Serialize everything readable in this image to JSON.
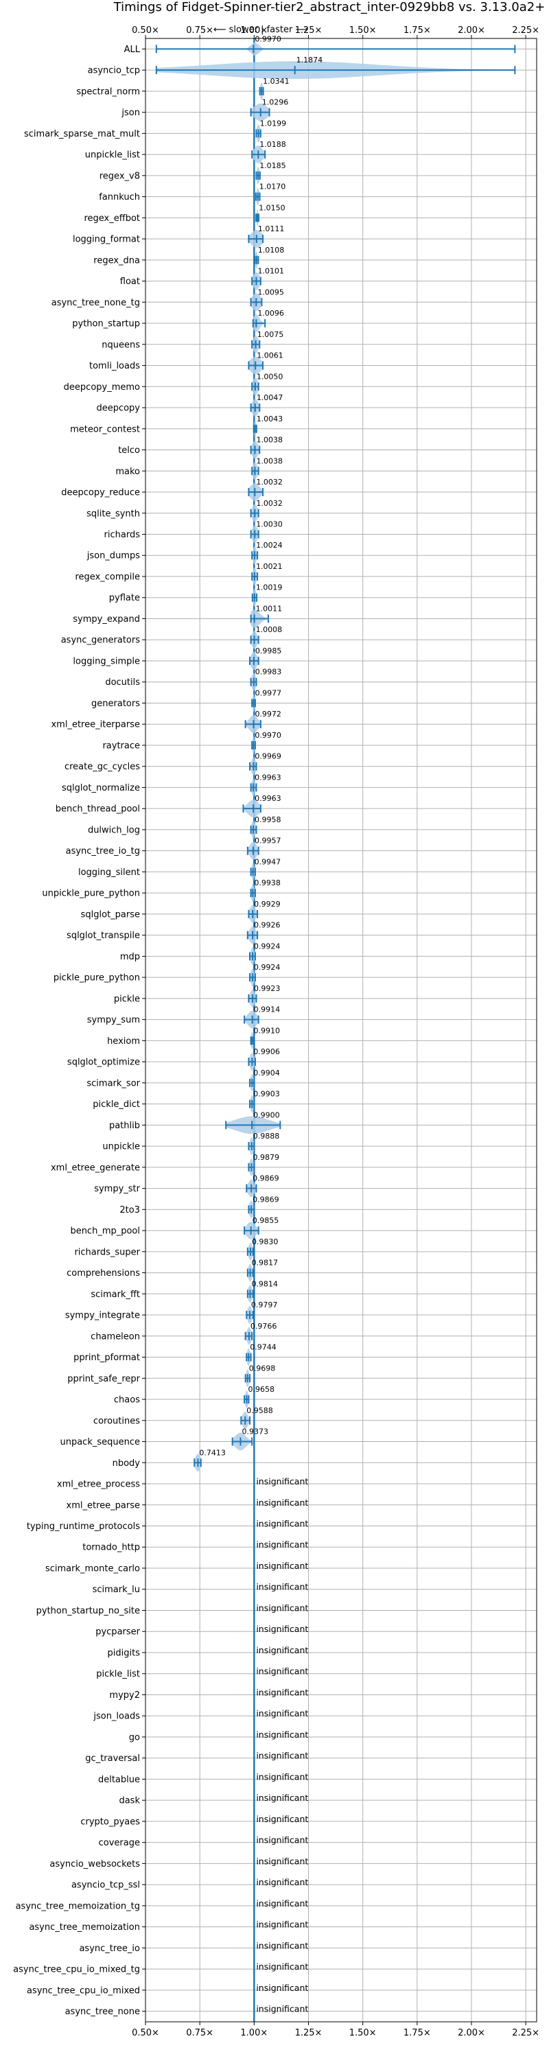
{
  "chart_data": {
    "type": "violin",
    "title": "Timings of Fidget-Spinner-tier2_abstract_inter-0929bb8 vs. 3.13.0a2+",
    "direction_label": "⟵ slower | faster ⟶",
    "xlim": [
      0.5,
      2.3
    ],
    "xticks": [
      0.5,
      0.75,
      1.0,
      1.25,
      1.5,
      1.75,
      2.0,
      2.25
    ],
    "xtick_labels": [
      "0.50×",
      "0.75×",
      "1.00×",
      "1.25×",
      "1.50×",
      "1.75×",
      "2.00×",
      "2.25×"
    ],
    "reference_line": 1.0,
    "grid": true,
    "colors": {
      "violin": "#1f77b4",
      "violin_fill": "#aecde8",
      "reference": "#1f77b4",
      "grid": "#b0b0b0"
    },
    "insignificant_label": "insignificant",
    "benchmarks": [
      {
        "name": "ALL",
        "value": 0.997,
        "label": "0.9970",
        "min": 0.55,
        "max": 2.2,
        "spread": 0.01
      },
      {
        "name": "asyncio_tcp",
        "value": 1.1874,
        "label": "1.1874",
        "min": 0.55,
        "max": 2.2,
        "spread": 0.38
      },
      {
        "name": "spectral_norm",
        "value": 1.0341,
        "label": "1.0341",
        "min": 1.026,
        "max": 1.042,
        "spread": 0.006
      },
      {
        "name": "json",
        "value": 1.0296,
        "label": "1.0296",
        "min": 0.985,
        "max": 1.07,
        "spread": 0.03
      },
      {
        "name": "scimark_sparse_mat_mult",
        "value": 1.0199,
        "label": "1.0199",
        "min": 1.01,
        "max": 1.03,
        "spread": 0.008
      },
      {
        "name": "unpickle_list",
        "value": 1.0188,
        "label": "1.0188",
        "min": 0.99,
        "max": 1.05,
        "spread": 0.02
      },
      {
        "name": "regex_v8",
        "value": 1.0185,
        "label": "1.0185",
        "min": 1.01,
        "max": 1.027,
        "spread": 0.006
      },
      {
        "name": "fannkuch",
        "value": 1.017,
        "label": "1.0170",
        "min": 1.008,
        "max": 1.026,
        "spread": 0.006
      },
      {
        "name": "regex_effbot",
        "value": 1.015,
        "label": "1.0150",
        "min": 1.009,
        "max": 1.021,
        "spread": 0.004
      },
      {
        "name": "logging_format",
        "value": 1.0111,
        "label": "1.0111",
        "min": 0.975,
        "max": 1.04,
        "spread": 0.025
      },
      {
        "name": "regex_dna",
        "value": 1.0108,
        "label": "1.0108",
        "min": 1.003,
        "max": 1.019,
        "spread": 0.005
      },
      {
        "name": "float",
        "value": 1.0101,
        "label": "1.0101",
        "min": 0.99,
        "max": 1.03,
        "spread": 0.015
      },
      {
        "name": "async_tree_none_tg",
        "value": 1.0095,
        "label": "1.0095",
        "min": 0.985,
        "max": 1.035,
        "spread": 0.02
      },
      {
        "name": "python_startup",
        "value": 1.0096,
        "label": "1.0096",
        "min": 0.995,
        "max": 1.05,
        "spread": 0.015
      },
      {
        "name": "nqueens",
        "value": 1.0075,
        "label": "1.0075",
        "min": 0.99,
        "max": 1.025,
        "spread": 0.012
      },
      {
        "name": "tomli_loads",
        "value": 1.0061,
        "label": "1.0061",
        "min": 0.975,
        "max": 1.04,
        "spread": 0.025
      },
      {
        "name": "deepcopy_memo",
        "value": 1.005,
        "label": "1.0050",
        "min": 0.99,
        "max": 1.02,
        "spread": 0.012
      },
      {
        "name": "deepcopy",
        "value": 1.0047,
        "label": "1.0047",
        "min": 0.985,
        "max": 1.025,
        "spread": 0.014
      },
      {
        "name": "meteor_contest",
        "value": 1.0043,
        "label": "1.0043",
        "min": 0.998,
        "max": 1.011,
        "spread": 0.004
      },
      {
        "name": "telco",
        "value": 1.0038,
        "label": "1.0038",
        "min": 0.985,
        "max": 1.025,
        "spread": 0.014
      },
      {
        "name": "mako",
        "value": 1.0038,
        "label": "1.0038",
        "min": 0.99,
        "max": 1.02,
        "spread": 0.01
      },
      {
        "name": "deepcopy_reduce",
        "value": 1.0032,
        "label": "1.0032",
        "min": 0.975,
        "max": 1.04,
        "spread": 0.022
      },
      {
        "name": "sqlite_synth",
        "value": 1.0032,
        "label": "1.0032",
        "min": 0.985,
        "max": 1.02,
        "spread": 0.012
      },
      {
        "name": "richards",
        "value": 1.003,
        "label": "1.0030",
        "min": 0.985,
        "max": 1.02,
        "spread": 0.012
      },
      {
        "name": "json_dumps",
        "value": 1.0024,
        "label": "1.0024",
        "min": 0.99,
        "max": 1.015,
        "spread": 0.008
      },
      {
        "name": "regex_compile",
        "value": 1.0021,
        "label": "1.0021",
        "min": 0.99,
        "max": 1.015,
        "spread": 0.008
      },
      {
        "name": "pyflate",
        "value": 1.0019,
        "label": "1.0019",
        "min": 0.992,
        "max": 1.012,
        "spread": 0.007
      },
      {
        "name": "sympy_expand",
        "value": 1.0011,
        "label": "1.0011",
        "min": 0.985,
        "max": 1.065,
        "spread": 0.025
      },
      {
        "name": "async_generators",
        "value": 1.0008,
        "label": "1.0008",
        "min": 0.985,
        "max": 1.02,
        "spread": 0.012
      },
      {
        "name": "logging_simple",
        "value": 0.9985,
        "label": "0.9985",
        "min": 0.98,
        "max": 1.02,
        "spread": 0.014
      },
      {
        "name": "docutils",
        "value": 0.9983,
        "label": "0.9983",
        "min": 0.985,
        "max": 1.01,
        "spread": 0.009
      },
      {
        "name": "generators",
        "value": 0.9977,
        "label": "0.9977",
        "min": 0.99,
        "max": 1.005,
        "spread": 0.005
      },
      {
        "name": "xml_etree_iterparse",
        "value": 0.9972,
        "label": "0.9972",
        "min": 0.96,
        "max": 1.03,
        "spread": 0.02
      },
      {
        "name": "raytrace",
        "value": 0.997,
        "label": "0.9970",
        "min": 0.99,
        "max": 1.005,
        "spread": 0.005
      },
      {
        "name": "create_gc_cycles",
        "value": 0.9969,
        "label": "0.9969",
        "min": 0.98,
        "max": 1.01,
        "spread": 0.01
      },
      {
        "name": "sqlglot_normalize",
        "value": 0.9963,
        "label": "0.9963",
        "min": 0.985,
        "max": 1.01,
        "spread": 0.008
      },
      {
        "name": "bench_thread_pool",
        "value": 0.9963,
        "label": "0.9963",
        "min": 0.95,
        "max": 1.03,
        "spread": 0.025
      },
      {
        "name": "dulwich_log",
        "value": 0.9958,
        "label": "0.9958",
        "min": 0.985,
        "max": 1.01,
        "spread": 0.008
      },
      {
        "name": "async_tree_io_tg",
        "value": 0.9957,
        "label": "0.9957",
        "min": 0.97,
        "max": 1.02,
        "spread": 0.016
      },
      {
        "name": "logging_silent",
        "value": 0.9947,
        "label": "0.9947",
        "min": 0.985,
        "max": 1.005,
        "spread": 0.006
      },
      {
        "name": "unpickle_pure_python",
        "value": 0.9938,
        "label": "0.9938",
        "min": 0.985,
        "max": 1.005,
        "spread": 0.007
      },
      {
        "name": "sqlglot_parse",
        "value": 0.9929,
        "label": "0.9929",
        "min": 0.975,
        "max": 1.015,
        "spread": 0.013
      },
      {
        "name": "sqlglot_transpile",
        "value": 0.9926,
        "label": "0.9926",
        "min": 0.97,
        "max": 1.015,
        "spread": 0.014
      },
      {
        "name": "mdp",
        "value": 0.9924,
        "label": "0.9924",
        "min": 0.98,
        "max": 1.005,
        "spread": 0.008
      },
      {
        "name": "pickle_pure_python",
        "value": 0.9924,
        "label": "0.9924",
        "min": 0.98,
        "max": 1.005,
        "spread": 0.008
      },
      {
        "name": "pickle",
        "value": 0.9923,
        "label": "0.9923",
        "min": 0.975,
        "max": 1.01,
        "spread": 0.011
      },
      {
        "name": "sympy_sum",
        "value": 0.9914,
        "label": "0.9914",
        "min": 0.955,
        "max": 1.02,
        "spread": 0.02
      },
      {
        "name": "hexiom",
        "value": 0.991,
        "label": "0.9910",
        "min": 0.985,
        "max": 0.998,
        "spread": 0.005
      },
      {
        "name": "sqlglot_optimize",
        "value": 0.9906,
        "label": "0.9906",
        "min": 0.975,
        "max": 1.005,
        "spread": 0.01
      },
      {
        "name": "scimark_sor",
        "value": 0.9904,
        "label": "0.9904",
        "min": 0.98,
        "max": 1.0,
        "spread": 0.007
      },
      {
        "name": "pickle_dict",
        "value": 0.9903,
        "label": "0.9903",
        "min": 0.98,
        "max": 1.0,
        "spread": 0.007
      },
      {
        "name": "pathlib",
        "value": 0.99,
        "label": "0.9900",
        "min": 0.87,
        "max": 1.12,
        "spread": 0.075
      },
      {
        "name": "unpickle",
        "value": 0.9888,
        "label": "0.9888",
        "min": 0.975,
        "max": 1.0,
        "spread": 0.009
      },
      {
        "name": "xml_etree_generate",
        "value": 0.9879,
        "label": "0.9879",
        "min": 0.975,
        "max": 1.0,
        "spread": 0.009
      },
      {
        "name": "sympy_str",
        "value": 0.9869,
        "label": "0.9869",
        "min": 0.965,
        "max": 1.01,
        "spread": 0.014
      },
      {
        "name": "2to3",
        "value": 0.9869,
        "label": "0.9869",
        "min": 0.975,
        "max": 1.0,
        "spread": 0.009
      },
      {
        "name": "bench_mp_pool",
        "value": 0.9855,
        "label": "0.9855",
        "min": 0.955,
        "max": 1.02,
        "spread": 0.02
      },
      {
        "name": "richards_super",
        "value": 0.983,
        "label": "0.9830",
        "min": 0.97,
        "max": 0.995,
        "spread": 0.009
      },
      {
        "name": "comprehensions",
        "value": 0.9817,
        "label": "0.9817",
        "min": 0.97,
        "max": 0.995,
        "spread": 0.009
      },
      {
        "name": "scimark_fft",
        "value": 0.9814,
        "label": "0.9814",
        "min": 0.97,
        "max": 0.995,
        "spread": 0.009
      },
      {
        "name": "sympy_integrate",
        "value": 0.9797,
        "label": "0.9797",
        "min": 0.965,
        "max": 0.995,
        "spread": 0.01
      },
      {
        "name": "chameleon",
        "value": 0.9766,
        "label": "0.9766",
        "min": 0.96,
        "max": 0.99,
        "spread": 0.01
      },
      {
        "name": "pprint_pformat",
        "value": 0.9744,
        "label": "0.9744",
        "min": 0.965,
        "max": 0.985,
        "spread": 0.007
      },
      {
        "name": "pprint_safe_repr",
        "value": 0.9698,
        "label": "0.9698",
        "min": 0.96,
        "max": 0.98,
        "spread": 0.007
      },
      {
        "name": "chaos",
        "value": 0.9658,
        "label": "0.9658",
        "min": 0.955,
        "max": 0.975,
        "spread": 0.007
      },
      {
        "name": "coroutines",
        "value": 0.9588,
        "label": "0.9588",
        "min": 0.94,
        "max": 0.98,
        "spread": 0.012
      },
      {
        "name": "unpack_sequence",
        "value": 0.9373,
        "label": "0.9373",
        "min": 0.9,
        "max": 0.99,
        "spread": 0.025
      },
      {
        "name": "nbody",
        "value": 0.7413,
        "label": "0.7413",
        "min": 0.725,
        "max": 0.755,
        "spread": 0.012
      },
      {
        "name": "xml_etree_process",
        "insignificant": true
      },
      {
        "name": "xml_etree_parse",
        "insignificant": true
      },
      {
        "name": "typing_runtime_protocols",
        "insignificant": true
      },
      {
        "name": "tornado_http",
        "insignificant": true
      },
      {
        "name": "scimark_monte_carlo",
        "insignificant": true
      },
      {
        "name": "scimark_lu",
        "insignificant": true
      },
      {
        "name": "python_startup_no_site",
        "insignificant": true
      },
      {
        "name": "pycparser",
        "insignificant": true
      },
      {
        "name": "pidigits",
        "insignificant": true
      },
      {
        "name": "pickle_list",
        "insignificant": true
      },
      {
        "name": "mypy2",
        "insignificant": true
      },
      {
        "name": "json_loads",
        "insignificant": true
      },
      {
        "name": "go",
        "insignificant": true
      },
      {
        "name": "gc_traversal",
        "insignificant": true
      },
      {
        "name": "deltablue",
        "insignificant": true
      },
      {
        "name": "dask",
        "insignificant": true
      },
      {
        "name": "crypto_pyaes",
        "insignificant": true
      },
      {
        "name": "coverage",
        "insignificant": true
      },
      {
        "name": "asyncio_websockets",
        "insignificant": true
      },
      {
        "name": "asyncio_tcp_ssl",
        "insignificant": true
      },
      {
        "name": "async_tree_memoization_tg",
        "insignificant": true
      },
      {
        "name": "async_tree_memoization",
        "insignificant": true
      },
      {
        "name": "async_tree_io",
        "insignificant": true
      },
      {
        "name": "async_tree_cpu_io_mixed_tg",
        "insignificant": true
      },
      {
        "name": "async_tree_cpu_io_mixed",
        "insignificant": true
      },
      {
        "name": "async_tree_none",
        "insignificant": true
      }
    ]
  }
}
